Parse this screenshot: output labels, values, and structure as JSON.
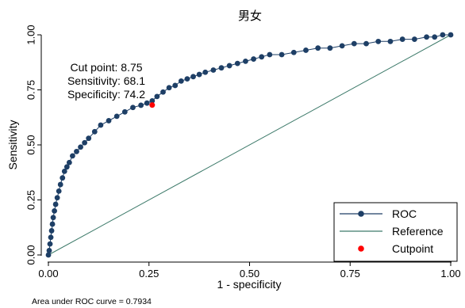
{
  "chart_data": {
    "type": "line",
    "title": "男女",
    "xlabel": "1 - specificity",
    "ylabel": "Sensitivity",
    "xlim": [
      0,
      1
    ],
    "ylim": [
      0,
      1
    ],
    "xticks": [
      "0.00",
      "0.25",
      "0.50",
      "0.75",
      "1.00"
    ],
    "yticks": [
      "0.00",
      "0.25",
      "0.50",
      "0.75",
      "1.00"
    ],
    "grid": false,
    "legend_position": "bottom-right",
    "annotation": [
      "Cut point: 8.75",
      "Sensitivity: 68.1",
      "Specificity: 74.2"
    ],
    "footnote": "Area under ROC curve = 0.7934",
    "colors": {
      "roc": "#1e3f66",
      "reference": "#3d7a6a",
      "cutpoint": "#ff0000"
    },
    "series": [
      {
        "name": "ROC",
        "x": [
          0,
          0.002,
          0.004,
          0.006,
          0.008,
          0.01,
          0.012,
          0.015,
          0.018,
          0.022,
          0.026,
          0.03,
          0.035,
          0.04,
          0.046,
          0.052,
          0.06,
          0.07,
          0.08,
          0.09,
          0.1,
          0.115,
          0.13,
          0.15,
          0.17,
          0.19,
          0.21,
          0.23,
          0.245,
          0.258,
          0.27,
          0.285,
          0.3,
          0.315,
          0.33,
          0.345,
          0.36,
          0.375,
          0.39,
          0.41,
          0.43,
          0.45,
          0.47,
          0.49,
          0.51,
          0.53,
          0.55,
          0.58,
          0.61,
          0.64,
          0.67,
          0.7,
          0.73,
          0.76,
          0.79,
          0.82,
          0.85,
          0.88,
          0.91,
          0.94,
          0.96,
          0.98,
          1.0
        ],
        "y": [
          0,
          0.02,
          0.05,
          0.08,
          0.11,
          0.14,
          0.17,
          0.2,
          0.23,
          0.26,
          0.29,
          0.32,
          0.35,
          0.38,
          0.4,
          0.42,
          0.45,
          0.47,
          0.49,
          0.51,
          0.53,
          0.56,
          0.59,
          0.61,
          0.63,
          0.65,
          0.67,
          0.68,
          0.69,
          0.7,
          0.72,
          0.74,
          0.76,
          0.77,
          0.79,
          0.8,
          0.81,
          0.82,
          0.83,
          0.84,
          0.85,
          0.86,
          0.87,
          0.88,
          0.89,
          0.9,
          0.91,
          0.91,
          0.92,
          0.93,
          0.94,
          0.94,
          0.95,
          0.96,
          0.96,
          0.97,
          0.97,
          0.98,
          0.98,
          0.99,
          0.99,
          1.0,
          1.0
        ]
      },
      {
        "name": "Reference",
        "x": [
          0,
          1
        ],
        "y": [
          0,
          1
        ]
      },
      {
        "name": "Cutpoint",
        "x": [
          0.258
        ],
        "y": [
          0.681
        ]
      }
    ]
  }
}
